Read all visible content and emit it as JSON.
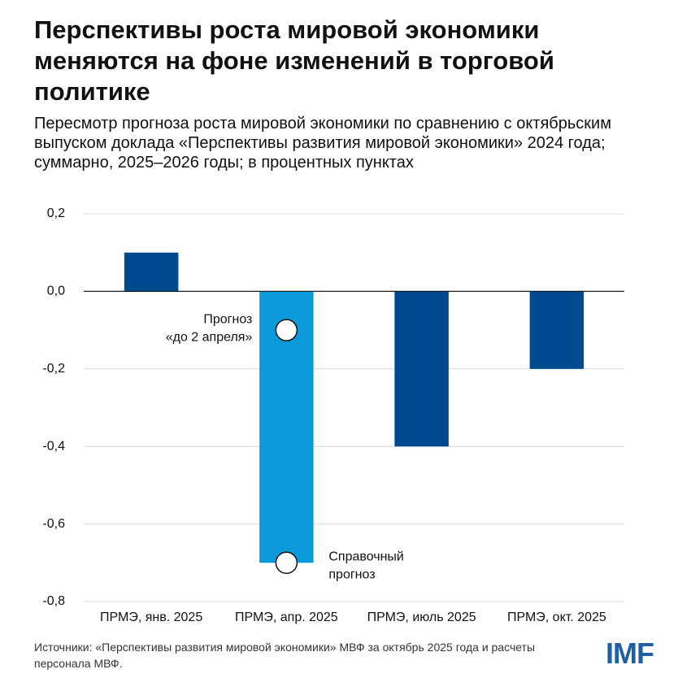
{
  "chart_data": {
    "type": "bar",
    "title": "Перспективы роста мировой экономики меняются на фоне изменений в торговой политике",
    "subtitle": "Пересмотр прогноза роста мировой экономики по сравнению с октябрьским выпуском доклада «Перспективы развития мировой экономики» 2024 года; суммарно, 2025–2026 годы; в процентных пунктах",
    "categories": [
      "ПРМЭ, янв. 2025",
      "ПРМЭ, апр. 2025",
      "ПРМЭ, июль 2025",
      "ПРМЭ, окт. 2025"
    ],
    "values": [
      0.1,
      -0.7,
      -0.4,
      -0.2
    ],
    "colors": [
      "#00498f",
      "#0a9ad9",
      "#00498f",
      "#00498f"
    ],
    "ylim": [
      -0.8,
      0.2
    ],
    "yticks": [
      {
        "value": 0.2,
        "label": "0,2"
      },
      {
        "value": 0,
        "label": "0,0"
      },
      {
        "value": -0.2,
        "label": "-0,2"
      },
      {
        "value": -0.4,
        "label": "-0,4"
      },
      {
        "value": -0.6,
        "label": "-0,6"
      },
      {
        "value": -0.8,
        "label": "-0,8"
      }
    ],
    "grid": true,
    "annotations": [
      {
        "category": 1,
        "value": -0.1,
        "text": [
          "Прогноз",
          "«до 2 апреля»"
        ],
        "side": "left"
      },
      {
        "category": 1,
        "value": -0.7,
        "text": [
          "Справочный",
          "прогноз"
        ],
        "side": "right"
      }
    ],
    "source": "Источники: «Перспективы развития мировой экономики» МВФ за октябрь 2025 года и расчеты персонала МВФ.",
    "logo": "IMF"
  }
}
